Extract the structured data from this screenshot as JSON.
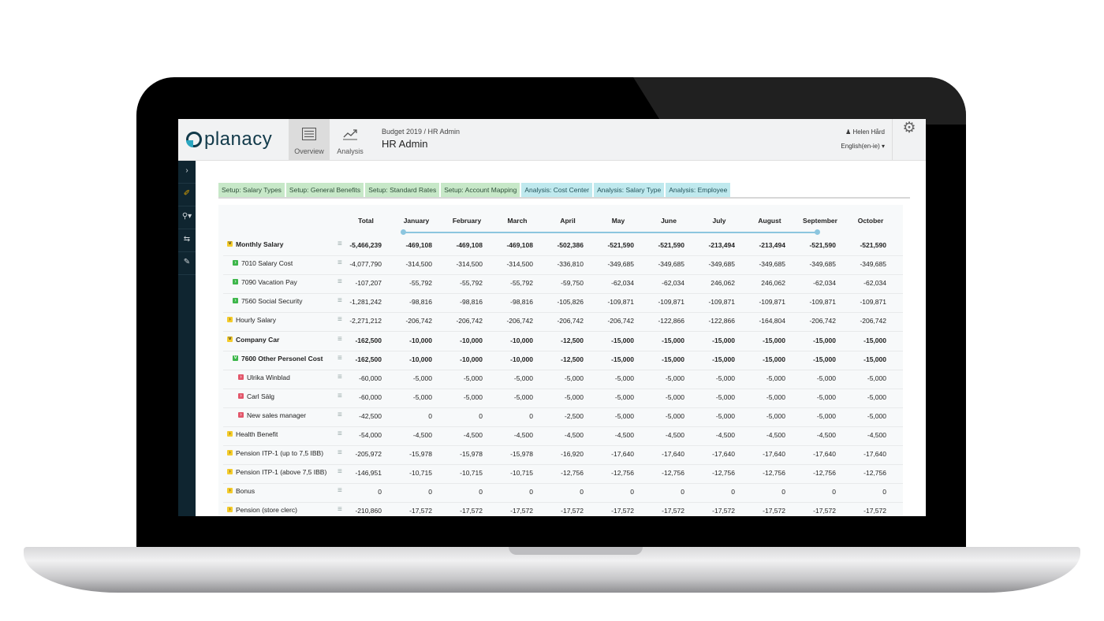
{
  "app": {
    "logo_text": "planacy"
  },
  "nav": [
    {
      "label": "Overview",
      "icon": "list-icon",
      "active": true
    },
    {
      "label": "Analysis",
      "icon": "trend-chart-icon",
      "active": false
    }
  ],
  "header": {
    "breadcrumb": "Budget 2019 / HR Admin",
    "title": "HR Admin"
  },
  "user": {
    "name": "Helen Hård",
    "language": "English(en-ie) ▾"
  },
  "sidebar": [
    "chevron-right-icon",
    "paperclip-icon",
    "search-icon",
    "swap-icon",
    "edit-icon"
  ],
  "tabs": [
    {
      "label": "Setup: Salary Types",
      "kind": "setup"
    },
    {
      "label": "Setup: General Benefits",
      "kind": "setup"
    },
    {
      "label": "Setup: Standard Rates",
      "kind": "setup"
    },
    {
      "label": "Setup: Account Mapping",
      "kind": "setup"
    },
    {
      "label": "Analysis: Cost Center",
      "kind": "analysis"
    },
    {
      "label": "Analysis: Salary Type",
      "kind": "analysis"
    },
    {
      "label": "Analysis: Employee",
      "kind": "analysis"
    }
  ],
  "table": {
    "columns": [
      "Total",
      "January",
      "February",
      "March",
      "April",
      "May",
      "June",
      "July",
      "August",
      "September",
      "October"
    ],
    "rows": [
      {
        "label": "Monthly Salary",
        "level": 0,
        "marker": "yellow",
        "expanded": true,
        "bold": true,
        "values": [
          "-5,466,239",
          "-469,108",
          "-469,108",
          "-469,108",
          "-502,386",
          "-521,590",
          "-521,590",
          "-213,494",
          "-213,494",
          "-521,590",
          "-521,590"
        ]
      },
      {
        "label": "7010 Salary Cost",
        "level": 1,
        "marker": "green",
        "expanded": false,
        "bold": false,
        "values": [
          "-4,077,790",
          "-314,500",
          "-314,500",
          "-314,500",
          "-336,810",
          "-349,685",
          "-349,685",
          "-349,685",
          "-349,685",
          "-349,685",
          "-349,685"
        ]
      },
      {
        "label": "7090 Vacation Pay",
        "level": 1,
        "marker": "green",
        "expanded": false,
        "bold": false,
        "values": [
          "-107,207",
          "-55,792",
          "-55,792",
          "-55,792",
          "-59,750",
          "-62,034",
          "-62,034",
          "246,062",
          "246,062",
          "-62,034",
          "-62,034"
        ]
      },
      {
        "label": "7560 Social Security",
        "level": 1,
        "marker": "green",
        "expanded": false,
        "bold": false,
        "values": [
          "-1,281,242",
          "-98,816",
          "-98,816",
          "-98,816",
          "-105,826",
          "-109,871",
          "-109,871",
          "-109,871",
          "-109,871",
          "-109,871",
          "-109,871"
        ]
      },
      {
        "label": "Hourly Salary",
        "level": 0,
        "marker": "yellow",
        "expanded": false,
        "bold": false,
        "values": [
          "-2,271,212",
          "-206,742",
          "-206,742",
          "-206,742",
          "-206,742",
          "-206,742",
          "-122,866",
          "-122,866",
          "-164,804",
          "-206,742",
          "-206,742"
        ]
      },
      {
        "label": "Company Car",
        "level": 0,
        "marker": "yellow",
        "expanded": true,
        "bold": true,
        "values": [
          "-162,500",
          "-10,000",
          "-10,000",
          "-10,000",
          "-12,500",
          "-15,000",
          "-15,000",
          "-15,000",
          "-15,000",
          "-15,000",
          "-15,000"
        ]
      },
      {
        "label": "7600 Other Personel Cost",
        "level": 1,
        "marker": "green",
        "expanded": true,
        "bold": true,
        "values": [
          "-162,500",
          "-10,000",
          "-10,000",
          "-10,000",
          "-12,500",
          "-15,000",
          "-15,000",
          "-15,000",
          "-15,000",
          "-15,000",
          "-15,000"
        ]
      },
      {
        "label": "Ulrika Winblad",
        "level": 2,
        "marker": "red",
        "expanded": false,
        "bold": false,
        "values": [
          "-60,000",
          "-5,000",
          "-5,000",
          "-5,000",
          "-5,000",
          "-5,000",
          "-5,000",
          "-5,000",
          "-5,000",
          "-5,000",
          "-5,000"
        ]
      },
      {
        "label": "Carl Sälg",
        "level": 2,
        "marker": "red",
        "expanded": false,
        "bold": false,
        "values": [
          "-60,000",
          "-5,000",
          "-5,000",
          "-5,000",
          "-5,000",
          "-5,000",
          "-5,000",
          "-5,000",
          "-5,000",
          "-5,000",
          "-5,000"
        ]
      },
      {
        "label": "New sales manager",
        "level": 2,
        "marker": "red",
        "expanded": false,
        "bold": false,
        "values": [
          "-42,500",
          "0",
          "0",
          "0",
          "-2,500",
          "-5,000",
          "-5,000",
          "-5,000",
          "-5,000",
          "-5,000",
          "-5,000"
        ]
      },
      {
        "label": "Health Benefit",
        "level": 0,
        "marker": "yellow",
        "expanded": false,
        "bold": false,
        "values": [
          "-54,000",
          "-4,500",
          "-4,500",
          "-4,500",
          "-4,500",
          "-4,500",
          "-4,500",
          "-4,500",
          "-4,500",
          "-4,500",
          "-4,500"
        ]
      },
      {
        "label": "Pension ITP-1 (up to 7,5 IBB)",
        "level": 0,
        "marker": "yellow",
        "expanded": false,
        "bold": false,
        "values": [
          "-205,972",
          "-15,978",
          "-15,978",
          "-15,978",
          "-16,920",
          "-17,640",
          "-17,640",
          "-17,640",
          "-17,640",
          "-17,640",
          "-17,640"
        ]
      },
      {
        "label": "Pension ITP-1 (above 7,5 IBB)",
        "level": 0,
        "marker": "yellow",
        "expanded": false,
        "bold": false,
        "values": [
          "-146,951",
          "-10,715",
          "-10,715",
          "-10,715",
          "-12,756",
          "-12,756",
          "-12,756",
          "-12,756",
          "-12,756",
          "-12,756",
          "-12,756"
        ]
      },
      {
        "label": "Bonus",
        "level": 0,
        "marker": "yellow",
        "expanded": false,
        "bold": false,
        "values": [
          "0",
          "0",
          "0",
          "0",
          "0",
          "0",
          "0",
          "0",
          "0",
          "0",
          "0"
        ]
      },
      {
        "label": "Pension (store clerc)",
        "level": 0,
        "marker": "yellow",
        "expanded": false,
        "bold": false,
        "values": [
          "-210,860",
          "-17,572",
          "-17,572",
          "-17,572",
          "-17,572",
          "-17,572",
          "-17,572",
          "-17,572",
          "-17,572",
          "-17,572",
          "-17,572"
        ]
      }
    ]
  }
}
